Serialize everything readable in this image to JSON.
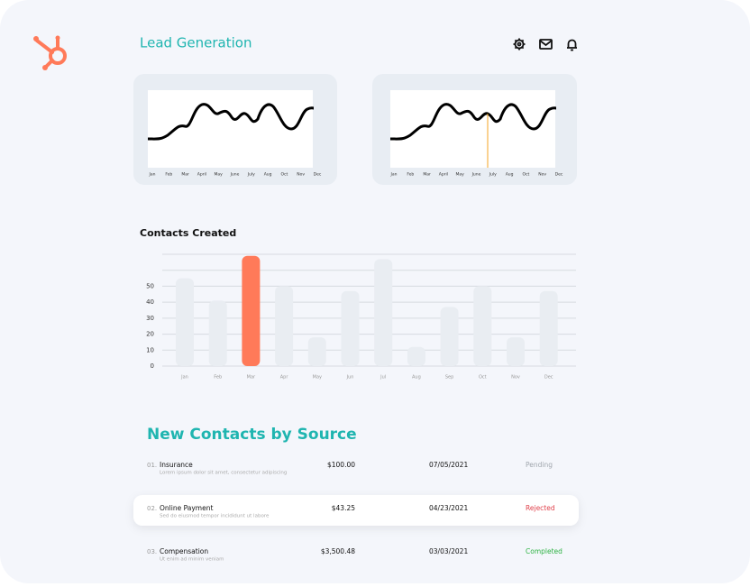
{
  "header": {
    "title": "Lead Generation"
  },
  "lead_charts": [
    {
      "months": [
        "Jan",
        "Feb",
        "Mar",
        "April",
        "May",
        "June",
        "July",
        "Aug",
        "Oct",
        "Nov",
        "Dec"
      ]
    },
    {
      "months": [
        "Jan",
        "Feb",
        "Mar",
        "April",
        "May",
        "June",
        "July",
        "Aug",
        "Oct",
        "Nov",
        "Dec"
      ]
    }
  ],
  "contacts_chart": {
    "type": "bar",
    "title": "Contacts Created",
    "categories": [
      "Jan",
      "Feb",
      "Mar",
      "Apr",
      "May",
      "Jun",
      "Jul",
      "Aug",
      "Sep",
      "Oct",
      "Nov",
      "Dec"
    ],
    "values": [
      55,
      41,
      69,
      50,
      18,
      47,
      67,
      12,
      37,
      50,
      18,
      47
    ],
    "colors": [
      "#e9edf2",
      "#e9edf2",
      "#ff7a59",
      "#e9edf2",
      "#e9edf2",
      "#e9edf2",
      "#e9edf2",
      "#e9edf2",
      "#e9edf2",
      "#e9edf2",
      "#e9edf2",
      "#e9edf2"
    ],
    "ylim": [
      0,
      70
    ],
    "yticks": [
      0,
      10,
      20,
      30,
      40,
      50
    ],
    "gridlines": [
      0,
      10,
      20,
      30,
      40,
      50,
      60,
      70
    ]
  },
  "table": {
    "title": "New Contacts by Source",
    "rows": [
      [
        "01.",
        "Insurance",
        "Lorem ipsum dolor sit amet, consectetur adipiscing",
        "$100.00",
        "07/05/2021",
        "Pending"
      ],
      [
        "02.",
        "Online Payment",
        "Sed do eiusmod tempor incididunt ut labore",
        "$43.25",
        "04/23/2021",
        "Rejected"
      ],
      [
        "03.",
        "Compensation",
        "Ut enim ad minim veniam",
        "$3,500.48",
        "03/03/2021",
        "Completed"
      ]
    ],
    "status_colors": [
      "#a0a6ad",
      "#e0414b",
      "#2fb344"
    ]
  }
}
